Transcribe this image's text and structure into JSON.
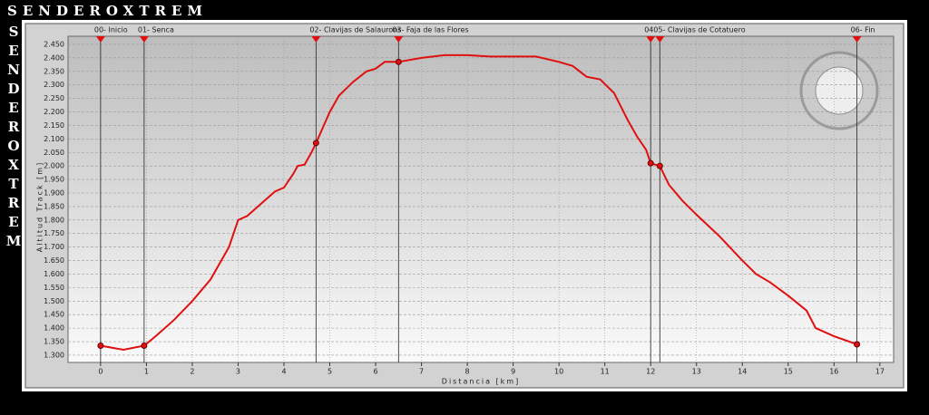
{
  "brand": "SENDEROXTREM",
  "chart_data": {
    "type": "line",
    "color": "#e01010",
    "xlabel": "Distancia [km]",
    "ylabel": "Altitud Track [m]",
    "xlim": [
      -0.71,
      17.3
    ],
    "ylim": [
      1273,
      2480
    ],
    "xticks": [
      0,
      1,
      2,
      3,
      4,
      5,
      6,
      7,
      8,
      9,
      10,
      11,
      12,
      13,
      14,
      15,
      16,
      17
    ],
    "yticks": [
      {
        "value": 1300,
        "label": "1.300"
      },
      {
        "value": 1350,
        "label": "1.350"
      },
      {
        "value": 1400,
        "label": "1.400"
      },
      {
        "value": 1450,
        "label": "1.450"
      },
      {
        "value": 1500,
        "label": "1.500"
      },
      {
        "value": 1550,
        "label": "1.550"
      },
      {
        "value": 1600,
        "label": "1.600"
      },
      {
        "value": 1650,
        "label": "1.650"
      },
      {
        "value": 1700,
        "label": "1.700"
      },
      {
        "value": 1750,
        "label": "1.750"
      },
      {
        "value": 1800,
        "label": "1.800"
      },
      {
        "value": 1850,
        "label": "1.850"
      },
      {
        "value": 1900,
        "label": "1.900"
      },
      {
        "value": 1950,
        "label": "1.950"
      },
      {
        "value": 2000,
        "label": "2.000"
      },
      {
        "value": 2050,
        "label": "2.050"
      },
      {
        "value": 2100,
        "label": "2.100"
      },
      {
        "value": 2150,
        "label": "2.150"
      },
      {
        "value": 2200,
        "label": "2.200"
      },
      {
        "value": 2250,
        "label": "2.250"
      },
      {
        "value": 2300,
        "label": "2.300"
      },
      {
        "value": 2350,
        "label": "2.350"
      },
      {
        "value": 2400,
        "label": "2.400"
      },
      {
        "value": 2450,
        "label": "2.450"
      }
    ],
    "grid": true,
    "x": [
      0,
      0.5,
      0.95,
      1.2,
      1.6,
      2,
      2.4,
      2.8,
      3,
      3.2,
      3.5,
      3.8,
      4,
      4.2,
      4.3,
      4.45,
      4.6,
      4.7,
      5,
      5.2,
      5.5,
      5.8,
      6,
      6.2,
      6.5,
      7,
      7.5,
      8,
      8.5,
      9,
      9.5,
      10,
      10.3,
      10.6,
      10.9,
      11.2,
      11.5,
      11.7,
      11.9,
      12,
      12.2,
      12.4,
      12.7,
      13,
      13.5,
      14,
      14.3,
      14.6,
      15,
      15.4,
      15.6,
      16,
      16.5
    ],
    "values": [
      1335,
      1320,
      1335,
      1370,
      1430,
      1500,
      1580,
      1700,
      1800,
      1815,
      1860,
      1905,
      1920,
      1970,
      2000,
      2005,
      2050,
      2085,
      2200,
      2260,
      2310,
      2350,
      2360,
      2385,
      2385,
      2400,
      2410,
      2410,
      2405,
      2405,
      2405,
      2385,
      2370,
      2330,
      2320,
      2270,
      2170,
      2110,
      2060,
      2010,
      2000,
      1930,
      1870,
      1820,
      1740,
      1650,
      1600,
      1570,
      1520,
      1465,
      1400,
      1370,
      1340
    ],
    "waypoints": {
      "labels": [
        "00- Inicio",
        "01- Senca",
        "02- Clavijas de Salaurons",
        "03- Faja de las Flores",
        "04",
        "05- Clavijas de Cotatuero",
        "06- Fin"
      ],
      "x": [
        0,
        0.95,
        4.7,
        6.5,
        12.0,
        12.2,
        16.5
      ],
      "values": [
        1335,
        1335,
        2085,
        2385,
        2010,
        2000,
        1340
      ]
    }
  }
}
